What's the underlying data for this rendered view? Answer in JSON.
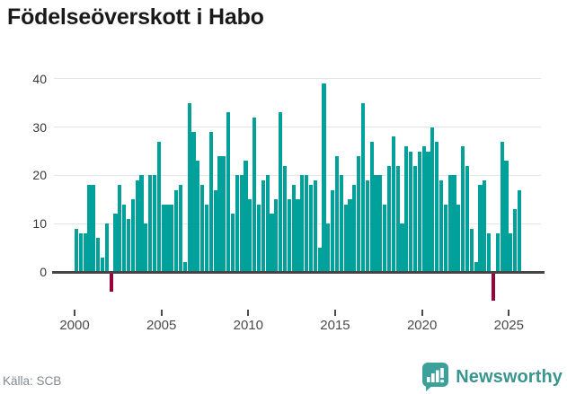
{
  "title": "Födelseöverskott i Habo",
  "source_label": "Källa: SCB",
  "brand": {
    "name": "Newsworthy"
  },
  "colors": {
    "positive_bar": "#00A19A",
    "negative_bar": "#98003E",
    "axis": "#454545",
    "grid": "#e5e5e5",
    "brand_teal": "#3A958F"
  },
  "chart_data": {
    "type": "bar",
    "title": "Födelseöverskott i Habo",
    "x_period": "quarterly",
    "x_start": {
      "year": 2000,
      "quarter": 1
    },
    "x_end": {
      "year": 2025,
      "quarter": 3
    },
    "values": [
      9,
      8,
      8,
      18,
      18,
      7,
      3,
      10,
      -4,
      12,
      18,
      14,
      11,
      15,
      19,
      20,
      10,
      20,
      20,
      27,
      14,
      14,
      14,
      17,
      18,
      2,
      35,
      29,
      23,
      18,
      14,
      29,
      17,
      24,
      24,
      33,
      12,
      20,
      20,
      23,
      15,
      32,
      14,
      19,
      20,
      12,
      15,
      33,
      22,
      15,
      18,
      15,
      20,
      20,
      18,
      19,
      5,
      39,
      10,
      17,
      24,
      20,
      14,
      15,
      18,
      24,
      35,
      19,
      27,
      20,
      20,
      14,
      22,
      28,
      22,
      10,
      26,
      25,
      22,
      25,
      26,
      25,
      30,
      27,
      19,
      14,
      20,
      20,
      14,
      26,
      22,
      9,
      2,
      18,
      19,
      8,
      -6,
      8,
      27,
      23,
      8,
      13,
      17
    ],
    "x_tick_years": [
      2000,
      2005,
      2010,
      2015,
      2020,
      2025
    ],
    "y_ticks": [
      0,
      10,
      20,
      30,
      40
    ],
    "ylim": [
      -8,
      40
    ],
    "grid": true,
    "legend": "none",
    "positive_color": "#00A19A",
    "negative_color": "#98003E",
    "source": "Källa: SCB"
  }
}
